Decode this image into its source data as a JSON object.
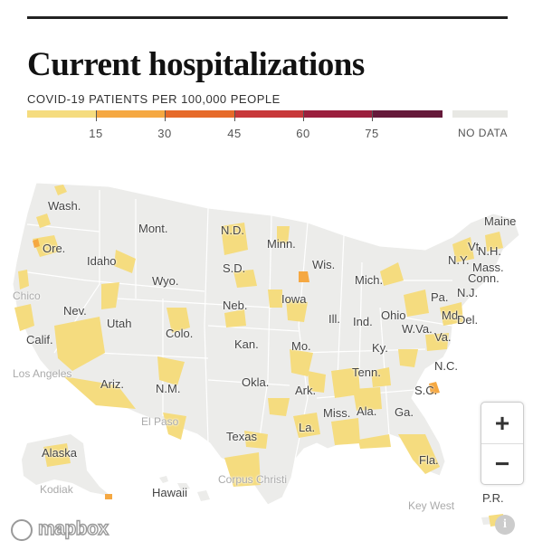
{
  "header": {
    "title": "Current hospitalizations",
    "subtitle": "COVID-19 PATIENTS PER 100,000 PEOPLE"
  },
  "legend": {
    "bins": [
      {
        "color": "#f5dc7f"
      },
      {
        "color": "#f5a842"
      },
      {
        "color": "#e66a2a"
      },
      {
        "color": "#c8383a"
      },
      {
        "color": "#9b1f3d"
      },
      {
        "color": "#65193a"
      }
    ],
    "ticks": [
      "15",
      "30",
      "45",
      "60",
      "75"
    ],
    "no_data_label": "NO DATA",
    "no_data_color": "#e8e8e4"
  },
  "labels": {
    "states": [
      "Wash.",
      "Mont.",
      "N.D.",
      "Minn.",
      "Maine",
      "Ore.",
      "Idaho",
      "S.D.",
      "Wis.",
      "Vt.",
      "N.H.",
      "N.Y.",
      "Mass.",
      "Conn.",
      "Wyo.",
      "Mich.",
      "N.J.",
      "Nev.",
      "Neb.",
      "Iowa",
      "Pa.",
      "Utah",
      "Ohio",
      "Md.",
      "Del.",
      "Calif.",
      "Colo.",
      "Ill.",
      "Ind.",
      "W.Va.",
      "Va.",
      "Kan.",
      "Mo.",
      "Ky.",
      "Tenn.",
      "N.C.",
      "Ariz.",
      "N.M.",
      "Okla.",
      "Ark.",
      "S.C.",
      "Miss.",
      "Ala.",
      "Ga.",
      "La.",
      "Texas",
      "Fla.",
      "Alaska",
      "Hawaii",
      "P.R."
    ],
    "cities": [
      "Chico",
      "Los Angeles",
      "El Paso",
      "Corpus Christi",
      "Kodiak",
      "Key West"
    ]
  },
  "controls": {
    "zoom_in": "+",
    "zoom_out": "−"
  },
  "attribution": {
    "logo_text": "mapbox",
    "info": "i"
  }
}
